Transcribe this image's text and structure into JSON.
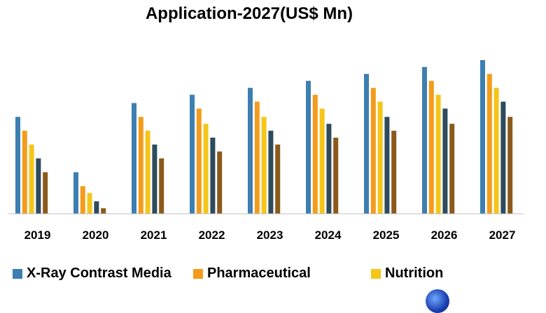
{
  "chart_data": {
    "type": "bar",
    "title": "Application-2027(US$ Mn)",
    "xlabel": "",
    "ylabel": "",
    "ylim": [
      0,
      110
    ],
    "grid": false,
    "legend_position": "bottom",
    "categories": [
      "2019",
      "2020",
      "2021",
      "2022",
      "2023",
      "2024",
      "2025",
      "2026",
      "2027"
    ],
    "series": [
      {
        "name": "X-Ray Contrast Media",
        "color": "#3d7fb0",
        "values": [
          70,
          30,
          80,
          86,
          91,
          96,
          101,
          106,
          111
        ]
      },
      {
        "name": "Pharmaceutical",
        "color": "#f39c1c",
        "values": [
          60,
          20,
          70,
          76,
          81,
          86,
          91,
          96,
          101
        ]
      },
      {
        "name": "Nutrition",
        "color": "#f5c518",
        "values": [
          50,
          15,
          60,
          65,
          70,
          76,
          81,
          86,
          91
        ]
      },
      {
        "name": "",
        "color": "#2e4b5e",
        "values": [
          40,
          9,
          50,
          55,
          60,
          65,
          70,
          76,
          81
        ]
      },
      {
        "name": "",
        "color": "#8b5a1a",
        "values": [
          30,
          4,
          40,
          45,
          50,
          55,
          60,
          65,
          70
        ]
      }
    ]
  }
}
